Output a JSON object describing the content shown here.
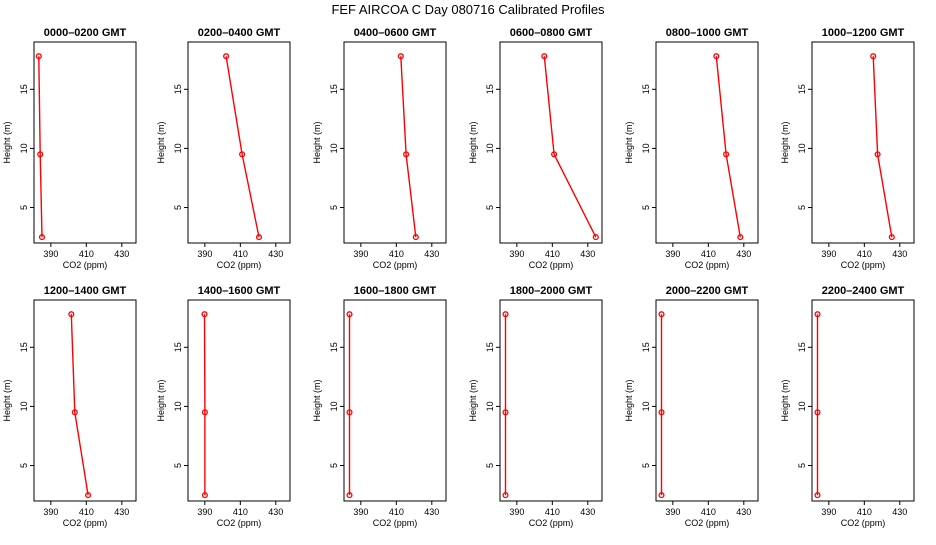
{
  "page_title": "FEF AIRCOA C  Day 080716  Calibrated Profiles",
  "colors": {
    "series": "#ff0000",
    "axis": "#000000",
    "background": "#ffffff"
  },
  "chart_data": [
    {
      "type": "line",
      "title": "0000–0200 GMT",
      "xlabel": "CO2 (ppm)",
      "ylabel": "Height (m)",
      "xlim": [
        380.5,
        438
      ],
      "ylim": [
        2,
        19
      ],
      "xticks": [
        "390",
        "410",
        "430"
      ],
      "yticks": [
        "5",
        "10",
        "15"
      ],
      "grid": false,
      "series": [
        {
          "x": [
            385.0,
            384.0,
            383.2
          ],
          "y": [
            2.5,
            9.5,
            17.8
          ]
        }
      ]
    },
    {
      "type": "line",
      "title": "0200–0400 GMT",
      "xlabel": "CO2 (ppm)",
      "ylabel": "Height (m)",
      "xlim": [
        380.5,
        438
      ],
      "ylim": [
        2,
        19
      ],
      "xticks": [
        "390",
        "410",
        "430"
      ],
      "yticks": [
        "5",
        "10",
        "15"
      ],
      "grid": false,
      "series": [
        {
          "x": [
            420.5,
            411.0,
            402.0
          ],
          "y": [
            2.5,
            9.5,
            17.8
          ]
        }
      ]
    },
    {
      "type": "line",
      "title": "0400–0600 GMT",
      "xlabel": "CO2 (ppm)",
      "ylabel": "Height (m)",
      "xlim": [
        380.5,
        438
      ],
      "ylim": [
        2,
        19
      ],
      "xticks": [
        "390",
        "410",
        "430"
      ],
      "yticks": [
        "5",
        "10",
        "15"
      ],
      "grid": false,
      "series": [
        {
          "x": [
            421.0,
            415.5,
            412.5
          ],
          "y": [
            2.5,
            9.5,
            17.8
          ]
        }
      ]
    },
    {
      "type": "line",
      "title": "0600–0800 GMT",
      "xlabel": "CO2 (ppm)",
      "ylabel": "Height (m)",
      "xlim": [
        380.5,
        438
      ],
      "ylim": [
        2,
        19
      ],
      "xticks": [
        "390",
        "410",
        "430"
      ],
      "yticks": [
        "5",
        "10",
        "15"
      ],
      "grid": false,
      "series": [
        {
          "x": [
            434.5,
            411.0,
            405.5
          ],
          "y": [
            2.5,
            9.5,
            17.8
          ]
        }
      ]
    },
    {
      "type": "line",
      "title": "0800–1000 GMT",
      "xlabel": "CO2 (ppm)",
      "ylabel": "Height (m)",
      "xlim": [
        380.5,
        438
      ],
      "ylim": [
        2,
        19
      ],
      "xticks": [
        "390",
        "410",
        "430"
      ],
      "yticks": [
        "5",
        "10",
        "15"
      ],
      "grid": false,
      "series": [
        {
          "x": [
            428.0,
            420.0,
            414.5
          ],
          "y": [
            2.5,
            9.5,
            17.8
          ]
        }
      ]
    },
    {
      "type": "line",
      "title": "1000–1200 GMT",
      "xlabel": "CO2 (ppm)",
      "ylabel": "Height (m)",
      "xlim": [
        380.5,
        438
      ],
      "ylim": [
        2,
        19
      ],
      "xticks": [
        "390",
        "410",
        "430"
      ],
      "yticks": [
        "5",
        "10",
        "15"
      ],
      "grid": false,
      "series": [
        {
          "x": [
            425.5,
            417.5,
            415.0
          ],
          "y": [
            2.5,
            9.5,
            17.8
          ]
        }
      ]
    },
    {
      "type": "line",
      "title": "1200–1400 GMT",
      "xlabel": "CO2 (ppm)",
      "ylabel": "Height (m)",
      "xlim": [
        380.5,
        438
      ],
      "ylim": [
        2,
        19
      ],
      "xticks": [
        "390",
        "410",
        "430"
      ],
      "yticks": [
        "5",
        "10",
        "15"
      ],
      "grid": false,
      "series": [
        {
          "x": [
            411.0,
            403.5,
            401.5
          ],
          "y": [
            2.5,
            9.5,
            17.8
          ]
        }
      ]
    },
    {
      "type": "line",
      "title": "1400–1600 GMT",
      "xlabel": "CO2 (ppm)",
      "ylabel": "Height (m)",
      "xlim": [
        380.5,
        438
      ],
      "ylim": [
        2,
        19
      ],
      "xticks": [
        "390",
        "410",
        "430"
      ],
      "yticks": [
        "5",
        "10",
        "15"
      ],
      "grid": false,
      "series": [
        {
          "x": [
            390.0,
            390.0,
            389.8
          ],
          "y": [
            2.5,
            9.5,
            17.8
          ]
        }
      ]
    },
    {
      "type": "line",
      "title": "1600–1800 GMT",
      "xlabel": "CO2 (ppm)",
      "ylabel": "Height (m)",
      "xlim": [
        380.5,
        438
      ],
      "ylim": [
        2,
        19
      ],
      "xticks": [
        "390",
        "410",
        "430"
      ],
      "yticks": [
        "5",
        "10",
        "15"
      ],
      "grid": false,
      "series": [
        {
          "x": [
            383.6,
            383.6,
            383.6
          ],
          "y": [
            2.5,
            9.5,
            17.8
          ]
        }
      ]
    },
    {
      "type": "line",
      "title": "1800–2000 GMT",
      "xlabel": "CO2 (ppm)",
      "ylabel": "Height (m)",
      "xlim": [
        380.5,
        438
      ],
      "ylim": [
        2,
        19
      ],
      "xticks": [
        "390",
        "410",
        "430"
      ],
      "yticks": [
        "5",
        "10",
        "15"
      ],
      "grid": false,
      "series": [
        {
          "x": [
            383.6,
            383.6,
            383.6
          ],
          "y": [
            2.5,
            9.5,
            17.8
          ]
        }
      ]
    },
    {
      "type": "line",
      "title": "2000–2200 GMT",
      "xlabel": "CO2 (ppm)",
      "ylabel": "Height (m)",
      "xlim": [
        380.5,
        438
      ],
      "ylim": [
        2,
        19
      ],
      "xticks": [
        "390",
        "410",
        "430"
      ],
      "yticks": [
        "5",
        "10",
        "15"
      ],
      "grid": false,
      "series": [
        {
          "x": [
            383.6,
            383.6,
            383.6
          ],
          "y": [
            2.5,
            9.5,
            17.8
          ]
        }
      ]
    },
    {
      "type": "line",
      "title": "2200–2400 GMT",
      "xlabel": "CO2 (ppm)",
      "ylabel": "Height (m)",
      "xlim": [
        380.5,
        438
      ],
      "ylim": [
        2,
        19
      ],
      "xticks": [
        "390",
        "410",
        "430"
      ],
      "yticks": [
        "5",
        "10",
        "15"
      ],
      "grid": false,
      "series": [
        {
          "x": [
            383.6,
            383.6,
            383.6
          ],
          "y": [
            2.5,
            9.5,
            17.8
          ]
        }
      ]
    }
  ]
}
